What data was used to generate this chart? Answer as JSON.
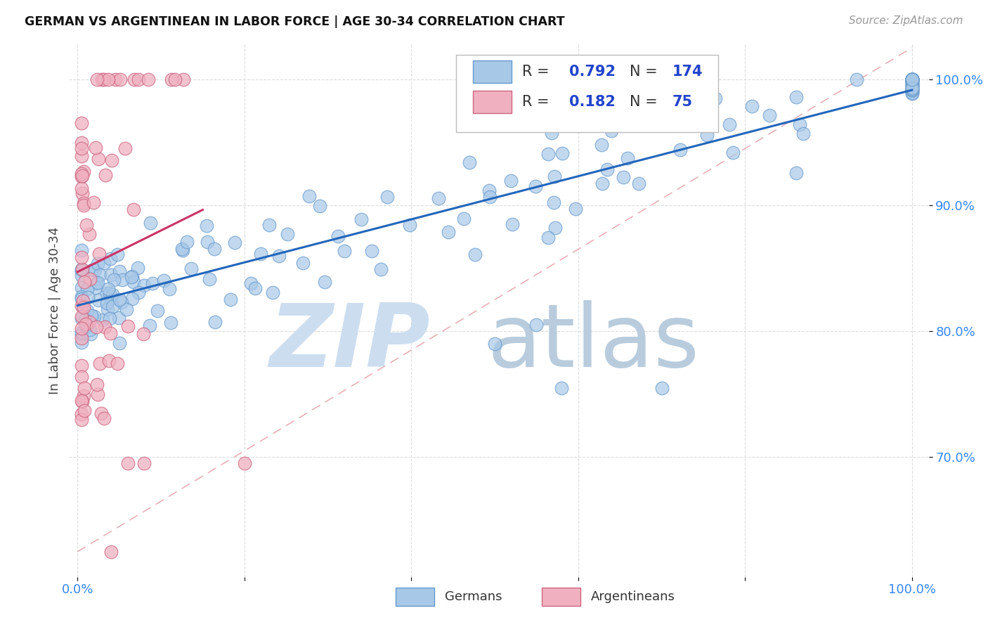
{
  "title": "GERMAN VS ARGENTINEAN IN LABOR FORCE | AGE 30-34 CORRELATION CHART",
  "source_text": "Source: ZipAtlas.com",
  "ylabel": "In Labor Force | Age 30-34",
  "german_color": "#a8c8e8",
  "german_edge": "#6699cc",
  "argentinean_color": "#f0b0c0",
  "argentinean_edge": "#cc6680",
  "trendline_german_color": "#2266bb",
  "trendline_argentinean_color": "#cc3366",
  "diagonal_color": "#e8b0b8",
  "watermark_zip_color": "#ccddf0",
  "watermark_atlas_color": "#b8ccdd",
  "legend_R_color": "#2244cc",
  "ytick_color": "#3388ff",
  "xtick_color": "#3388ff"
}
